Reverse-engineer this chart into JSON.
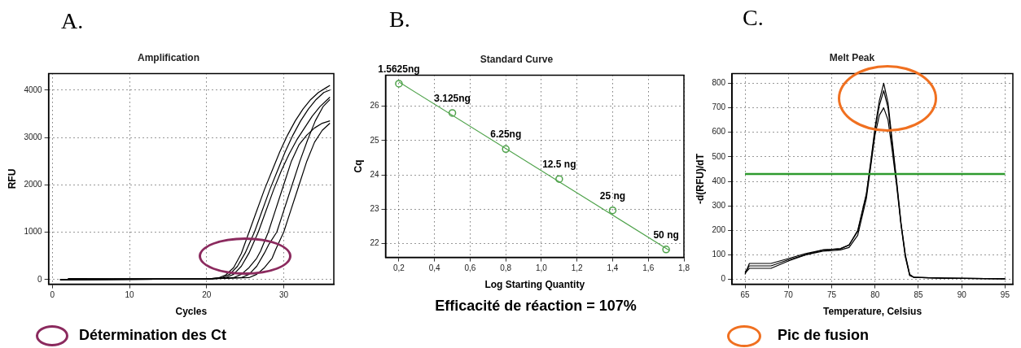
{
  "chart_data": [
    {
      "type": "line",
      "title": "Amplification",
      "xlabel": "Cycles",
      "ylabel": "RFU",
      "xlim": [
        -0.5,
        36.5
      ],
      "xticks": [
        0,
        10,
        20,
        30
      ],
      "ylim": [
        -100,
        4350
      ],
      "yticks": [
        0,
        1000,
        2000,
        3000,
        4000
      ],
      "grid": true,
      "legend": false,
      "marker": "none",
      "annotations": [
        "A.",
        "Détermination des Ct"
      ],
      "series": [
        {
          "color": "#000000",
          "x": [
            1,
            20,
            21.5,
            22.5,
            23.5,
            24.5,
            25.5,
            26.5,
            27.5,
            28.5,
            29.5,
            30.5,
            31.5,
            32.5,
            33.5,
            34.5,
            35.5,
            36
          ],
          "values": [
            0,
            10,
            30,
            100,
            250,
            550,
            1000,
            1450,
            1900,
            2300,
            2700,
            3050,
            3350,
            3600,
            3800,
            3950,
            4050,
            4100
          ]
        },
        {
          "color": "#000000",
          "x": [
            1,
            20,
            22,
            23,
            24,
            25,
            26.2,
            27.2,
            28.2,
            29.2,
            30.2,
            31.2,
            32.2,
            33.2,
            34.2,
            35.2,
            36
          ],
          "values": [
            0,
            10,
            40,
            110,
            280,
            560,
            1000,
            1450,
            1900,
            2300,
            2700,
            3050,
            3350,
            3600,
            3800,
            3950,
            4000
          ]
        },
        {
          "color": "#000000",
          "x": [
            1,
            20,
            22.5,
            23.5,
            24.5,
            25.5,
            26.7,
            27.7,
            28.7,
            29.7,
            30.7,
            31.7,
            32.7,
            33.7,
            34.7,
            36
          ],
          "values": [
            0,
            10,
            40,
            110,
            280,
            560,
            1000,
            1450,
            1900,
            2300,
            2650,
            2950,
            3200,
            3450,
            3650,
            3850
          ]
        },
        {
          "color": "#000000",
          "x": [
            1,
            20,
            23.5,
            24.5,
            25.5,
            26.5,
            27,
            28,
            29,
            30,
            31,
            32,
            33,
            34,
            35,
            36
          ],
          "values": [
            0,
            10,
            40,
            110,
            250,
            450,
            600,
            1000,
            1500,
            2000,
            2500,
            2850,
            3050,
            3200,
            3300,
            3350
          ]
        },
        {
          "color": "#000000",
          "x": [
            1,
            20,
            24.5,
            25.5,
            26.5,
            27.5,
            28.1,
            29.1,
            30.1,
            31.1,
            32.1,
            33.1,
            34.1,
            35.1,
            36
          ],
          "values": [
            0,
            10,
            40,
            110,
            280,
            560,
            750,
            1000,
            1500,
            2000,
            2500,
            2950,
            3350,
            3650,
            3800
          ]
        },
        {
          "color": "#000000",
          "x": [
            2,
            20,
            25.5,
            26.5,
            27.5,
            28.5,
            29,
            30,
            31,
            32,
            33,
            34,
            35,
            36
          ],
          "values": [
            20,
            15,
            40,
            110,
            250,
            450,
            650,
            1000,
            1500,
            2000,
            2500,
            2900,
            3150,
            3300
          ]
        }
      ]
    },
    {
      "type": "scatter",
      "title": "Standard Curve",
      "xlabel": "Log Starting Quantity",
      "ylabel": "Cq",
      "xlim": [
        0.125,
        1.8
      ],
      "xticks": [
        {
          "value": 0.2,
          "label": "0,2"
        },
        {
          "value": 0.4,
          "label": "0,4"
        },
        {
          "value": 0.6,
          "label": "0,6"
        },
        {
          "value": 0.8,
          "label": "0,8"
        },
        {
          "value": 1.0,
          "label": "1,0"
        },
        {
          "value": 1.2,
          "label": "1,2"
        },
        {
          "value": 1.4,
          "label": "1,4"
        },
        {
          "value": 1.6,
          "label": "1,6"
        },
        {
          "value": 1.8,
          "label": "1,8"
        }
      ],
      "ylim": [
        21.6,
        26.9
      ],
      "yticks": [
        22,
        23,
        24,
        25,
        26
      ],
      "grid": true,
      "legend": false,
      "annotations": [
        "B.",
        "Efficacité de réaction = 107%",
        {
          "text": "1.5625ng",
          "x": 0.2,
          "y": 26.65
        },
        {
          "text": "3.125ng",
          "x": 0.5,
          "y": 25.8
        },
        {
          "text": "6.25ng",
          "x": 0.8,
          "y": 24.75
        },
        {
          "text": "12.5 ng",
          "x": 1.1,
          "y": 23.88
        },
        {
          "text": "25 ng",
          "x": 1.4,
          "y": 22.97
        },
        {
          "text": "50 ng",
          "x": 1.7,
          "y": 21.83
        }
      ],
      "series": [
        {
          "type": "scatter",
          "color": "#4ea24a",
          "marker": "circle",
          "x": [
            0.2,
            0.5,
            0.8,
            1.1,
            1.4,
            1.7
          ],
          "values": [
            26.65,
            25.8,
            24.75,
            23.88,
            22.97,
            21.83
          ]
        },
        {
          "type": "line",
          "color": "#4ea24a",
          "marker": "none",
          "x": [
            0.2,
            1.72
          ],
          "values": [
            26.7,
            21.8
          ]
        }
      ]
    },
    {
      "type": "line",
      "title": "Melt Peak",
      "xlabel": "Temperature, Celsius",
      "ylabel": "-d(RFU)/dT",
      "xlim": [
        63.5,
        95.9
      ],
      "xticks": [
        65,
        70,
        75,
        80,
        85,
        90,
        95
      ],
      "ylim": [
        -20,
        840
      ],
      "yticks": [
        0,
        100,
        200,
        300,
        400,
        500,
        600,
        700,
        800
      ],
      "grid": true,
      "legend": false,
      "marker": "none",
      "annotations": [
        "C.",
        "Pic de fusion"
      ],
      "ref_lines": [
        {
          "axis": "y",
          "value": 430,
          "color": "#2e9a2e"
        }
      ],
      "series": [
        {
          "color": "#000000",
          "x": [
            65,
            65.5,
            68,
            70,
            72,
            74,
            76,
            77,
            78,
            79,
            79.5,
            80,
            80.5,
            81,
            81.5,
            82,
            82.5,
            83,
            83.5,
            84,
            84.5,
            88,
            95
          ],
          "values": [
            20,
            65,
            65,
            85,
            105,
            120,
            125,
            140,
            200,
            350,
            480,
            620,
            730,
            800,
            720,
            560,
            400,
            230,
            100,
            20,
            8,
            5,
            2
          ]
        },
        {
          "color": "#000000",
          "x": [
            65,
            65.5,
            68,
            70,
            72,
            74,
            76,
            77,
            78,
            79,
            79.5,
            80,
            80.5,
            81,
            81.5,
            82,
            82.5,
            83,
            83.5,
            84,
            84.5,
            88,
            95
          ],
          "values": [
            30,
            55,
            55,
            80,
            100,
            120,
            125,
            140,
            195,
            345,
            470,
            610,
            710,
            770,
            700,
            545,
            390,
            225,
            95,
            18,
            8,
            5,
            2
          ]
        },
        {
          "color": "#000000",
          "x": [
            65,
            65.5,
            68,
            70,
            72,
            74,
            76,
            77,
            78,
            79,
            79.5,
            80,
            80.5,
            81,
            81.5,
            82,
            82.5,
            83,
            83.5,
            84,
            84.5,
            88,
            95
          ],
          "values": [
            25,
            45,
            45,
            75,
            100,
            115,
            120,
            130,
            180,
            330,
            460,
            590,
            670,
            700,
            650,
            520,
            380,
            220,
            90,
            15,
            8,
            5,
            2
          ]
        }
      ]
    }
  ]
}
